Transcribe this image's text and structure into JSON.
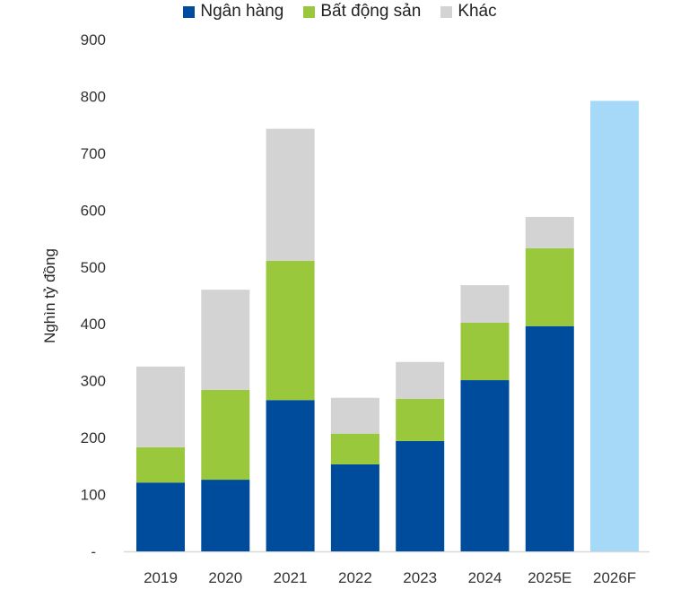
{
  "chart_data": {
    "type": "bar",
    "stacked": true,
    "title": "",
    "xlabel": "",
    "ylabel": "Nghìn tỷ đồng",
    "ylim": [
      0,
      900
    ],
    "yticks": [
      0,
      100,
      200,
      300,
      400,
      500,
      600,
      700,
      800,
      900
    ],
    "ytick_labels": [
      "-",
      "100",
      "200",
      "300",
      "400",
      "500",
      "600",
      "700",
      "800",
      "900"
    ],
    "grid": false,
    "legend_position": "top-center",
    "categories": [
      "2019",
      "2020",
      "2021",
      "2022",
      "2023",
      "2024",
      "2025E",
      "2026F"
    ],
    "series": [
      {
        "name": "Ngân hàng",
        "color": "#004c9c",
        "values": [
          121,
          126,
          266,
          153,
          194,
          301,
          396,
          null
        ]
      },
      {
        "name": "Bất động sản",
        "color": "#99c83d",
        "values": [
          62,
          158,
          245,
          54,
          74,
          101,
          137,
          null
        ]
      },
      {
        "name": "Khác",
        "color": "#d3d3d3",
        "values": [
          142,
          176,
          232,
          63,
          65,
          66,
          55,
          null
        ]
      }
    ],
    "forecast": {
      "category": "2026F",
      "total": 792,
      "color": "#a6d8f7"
    }
  }
}
